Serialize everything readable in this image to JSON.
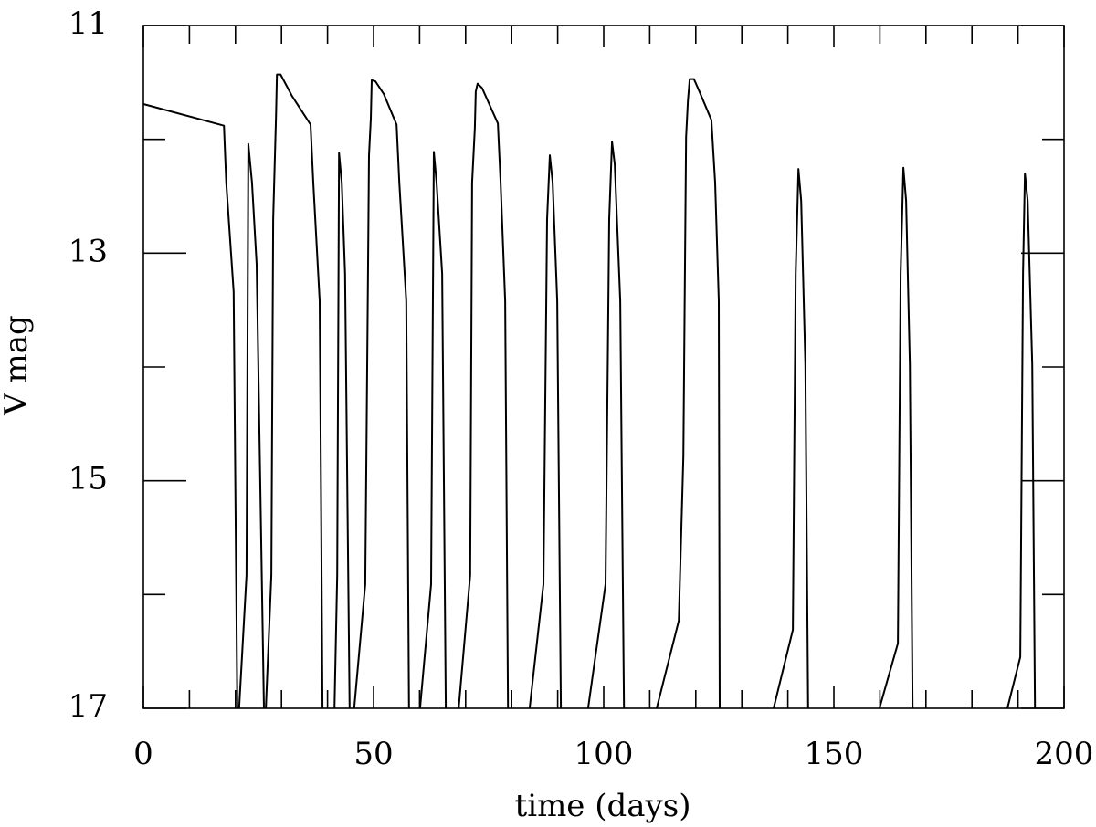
{
  "chart_data": {
    "type": "line",
    "x_label": "time (days)",
    "y_label": "V mag",
    "xlim": [
      0,
      200
    ],
    "xticks": [
      0,
      50,
      100,
      150,
      200
    ],
    "xticks_minor": [
      10,
      20,
      30,
      40,
      60,
      70,
      80,
      90,
      110,
      120,
      130,
      140,
      160,
      170,
      180,
      190
    ],
    "ylim": [
      11,
      17
    ],
    "yticks": [
      11,
      13,
      15,
      17
    ],
    "yticks_minor": [
      12,
      14,
      16
    ],
    "y_inverted": true,
    "color": "#000000",
    "x": [
      0,
      17.5,
      18.0,
      19.6,
      20.4,
      null,
      20.8,
      22.4,
      22.8,
      23.6,
      24.6,
      26.2,
      null,
      26.6,
      27.8,
      28.2,
      28.8,
      29.0,
      29.8,
      32.3,
      36.3,
      36.9,
      38.3,
      38.9,
      null,
      41.5,
      42.1,
      42.5,
      43.1,
      43.8,
      44.8,
      null,
      45.8,
      48.2,
      48.8,
      49.0,
      49.4,
      49.6,
      50.4,
      52.2,
      55.0,
      55.6,
      57.1,
      57.7,
      null,
      60.1,
      62.5,
      63.1,
      63.7,
      64.9,
      65.7,
      null,
      68.5,
      71.0,
      71.4,
      72.0,
      72.2,
      72.6,
      73.6,
      77.0,
      77.6,
      78.6,
      79.2,
      null,
      83.9,
      86.9,
      87.7,
      88.3,
      88.9,
      89.9,
      90.7,
      null,
      96.6,
      100.4,
      101.2,
      101.8,
      102.4,
      103.6,
      104.4,
      null,
      111.5,
      116.3,
      117.3,
      117.9,
      118.3,
      118.7,
      119.6,
      120.8,
      123.4,
      124.2,
      125.0,
      125.2,
      null,
      136.9,
      141.1,
      141.7,
      142.3,
      142.9,
      143.8,
      144.4,
      null,
      159.9,
      163.9,
      164.5,
      165.1,
      165.7,
      166.5,
      167.1,
      null,
      187.7,
      190.5,
      191.1,
      191.5,
      192.1,
      193.1,
      193.7
    ],
    "values": [
      11.69,
      11.88,
      12.38,
      13.34,
      17,
      null,
      17,
      15.83,
      12.04,
      12.38,
      13.1,
      17,
      null,
      17,
      15.83,
      12.7,
      11.8,
      11.43,
      11.43,
      11.62,
      11.87,
      12.38,
      13.42,
      17,
      null,
      17,
      15.83,
      12.12,
      12.38,
      13.18,
      17,
      null,
      17,
      15.91,
      13.1,
      12.14,
      11.82,
      11.48,
      11.49,
      11.6,
      11.87,
      12.38,
      13.42,
      17,
      null,
      17,
      15.91,
      12.11,
      12.38,
      13.18,
      17,
      null,
      17,
      15.83,
      12.38,
      11.9,
      11.58,
      11.51,
      11.55,
      11.86,
      12.38,
      13.42,
      17,
      null,
      17,
      15.91,
      12.7,
      12.14,
      12.38,
      13.42,
      17,
      null,
      17,
      15.91,
      12.7,
      12.02,
      12.22,
      13.42,
      17,
      null,
      17,
      16.23,
      14.79,
      11.98,
      11.66,
      11.47,
      11.47,
      11.58,
      11.83,
      12.38,
      13.42,
      17,
      null,
      17,
      16.31,
      13.18,
      12.26,
      12.54,
      13.98,
      17,
      null,
      17,
      16.43,
      13.18,
      12.25,
      12.54,
      13.98,
      17,
      null,
      17,
      16.55,
      13.18,
      12.3,
      12.54,
      13.98,
      17
    ]
  }
}
